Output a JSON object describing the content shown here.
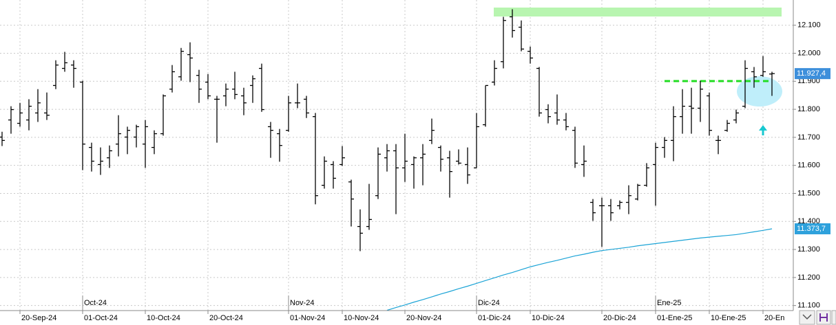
{
  "chart_data": {
    "type": "ohlc",
    "color": "#000000",
    "categories": [
      null,
      null,
      "20-Sep-24",
      null,
      null,
      null,
      null,
      null,
      null,
      "01-Oct-24",
      null,
      null,
      null,
      null,
      null,
      null,
      "10-Oct-24",
      null,
      null,
      null,
      null,
      null,
      null,
      "20-Oct-24",
      null,
      null,
      null,
      null,
      null,
      null,
      null,
      null,
      "01-Nov-24",
      null,
      null,
      null,
      null,
      null,
      "10-Nov-24",
      null,
      null,
      null,
      null,
      null,
      null,
      "20-Nov-24",
      null,
      null,
      null,
      null,
      null,
      null,
      null,
      "01-Dic-24",
      null,
      null,
      null,
      null,
      null,
      "10-Dic-24",
      null,
      null,
      null,
      null,
      null,
      null,
      null,
      "20-Dic-24",
      null,
      null,
      null,
      null,
      null,
      "01-Ene-25",
      null,
      null,
      null,
      null,
      null,
      "10-Ene-25",
      null,
      null,
      null,
      null,
      null,
      "20-En",
      null
    ],
    "months": [
      null,
      null,
      null,
      null,
      null,
      null,
      null,
      null,
      null,
      "Oct-24",
      null,
      null,
      null,
      null,
      null,
      null,
      null,
      null,
      null,
      null,
      null,
      null,
      null,
      null,
      null,
      null,
      null,
      null,
      null,
      null,
      null,
      null,
      "Nov-24",
      null,
      null,
      null,
      null,
      null,
      null,
      null,
      null,
      null,
      null,
      null,
      null,
      null,
      null,
      null,
      null,
      null,
      null,
      null,
      null,
      "Dic-24",
      null,
      null,
      null,
      null,
      null,
      null,
      null,
      null,
      null,
      null,
      null,
      null,
      null,
      null,
      null,
      null,
      null,
      null,
      null,
      "Ene-25",
      null,
      null,
      null,
      null,
      null,
      null,
      null,
      null,
      null,
      null,
      null,
      null,
      null
    ],
    "open": [
      11701,
      11762,
      11750,
      11762,
      11787,
      11787,
      11885,
      11946,
      11958,
      11897,
      11664,
      11603,
      11627,
      11676,
      11701,
      11701,
      11676,
      11664,
      11713,
      11872,
      11916,
      11995,
      11921,
      11897,
      11836,
      11848,
      11872,
      11848,
      11885,
      11946,
      11738,
      11713,
      11725,
      11823,
      11836,
      11774,
      11529,
      11603,
      11603,
      11541,
      11382,
      11382,
      11492,
      11627,
      11652,
      11591,
      11603,
      11627,
      11689,
      11664,
      11627,
      11615,
      11603,
      11591,
      11745,
      11897,
      11970,
      12130,
      12093,
      12007,
      11946,
      11799,
      11787,
      11762,
      11725,
      11603,
      11468,
      11456,
      11456,
      11456,
      11468,
      11480,
      11529,
      11603,
      11664,
      11689,
      11774,
      11811,
      11804,
      11848,
      11689,
      11725,
      11762,
      11811,
      11934,
      11921,
      11926
    ],
    "high": [
      11720,
      11811,
      11823,
      11836,
      11872,
      11860,
      11975,
      12005,
      11975,
      11902,
      11681,
      11664,
      11671,
      11779,
      11738,
      11745,
      11762,
      11725,
      11853,
      11958,
      12019,
      12039,
      11941,
      11926,
      11848,
      11892,
      11934,
      11877,
      11921,
      11963,
      11755,
      11730,
      11848,
      11892,
      11848,
      11787,
      11632,
      11615,
      11669,
      11549,
      11443,
      11534,
      11664,
      11676,
      11676,
      11713,
      11632,
      11676,
      11767,
      11671,
      11652,
      11657,
      11664,
      11787,
      11885,
      11975,
      12130,
      12157,
      12117,
      12024,
      11951,
      11818,
      11853,
      11787,
      11738,
      11671,
      11480,
      11485,
      11480,
      11475,
      11529,
      11534,
      11608,
      11681,
      11701,
      11811,
      11872,
      11877,
      11902,
      11860,
      11706,
      11762,
      11799,
      11975,
      11951,
      11990,
      11934
    ],
    "low": [
      11669,
      11713,
      11738,
      11725,
      11755,
      11762,
      11872,
      11934,
      11877,
      11583,
      11578,
      11566,
      11591,
      11632,
      11640,
      11664,
      11591,
      11640,
      11706,
      11860,
      11902,
      11897,
      11823,
      11836,
      11681,
      11811,
      11836,
      11779,
      11823,
      11791,
      11627,
      11613,
      11720,
      11804,
      11769,
      11461,
      11517,
      11517,
      11598,
      11382,
      11294,
      11370,
      11480,
      11578,
      11426,
      11541,
      11517,
      11529,
      11676,
      11578,
      11485,
      11603,
      11534,
      11591,
      11738,
      11885,
      11946,
      12056,
      12007,
      11963,
      11774,
      11750,
      11745,
      11725,
      11591,
      11559,
      11402,
      11309,
      11402,
      11443,
      11426,
      11475,
      11524,
      11456,
      11627,
      11615,
      11713,
      11713,
      11755,
      11706,
      11640,
      11720,
      11750,
      11804,
      11877,
      11916,
      11848
    ],
    "close": [
      11689,
      11799,
      11787,
      11811,
      11823,
      11779,
      11958,
      11966,
      11946,
      11676,
      11615,
      11615,
      11652,
      11713,
      11725,
      11738,
      11738,
      11713,
      11848,
      11934,
      12007,
      11983,
      11872,
      11848,
      11836,
      11872,
      11853,
      11823,
      11909,
      11799,
      11725,
      11671,
      11823,
      11823,
      11787,
      11492,
      11615,
      11554,
      11627,
      11480,
      11358,
      11407,
      11640,
      11652,
      11591,
      11615,
      11627,
      11640,
      11725,
      11622,
      11578,
      11608,
      11566,
      11738,
      11885,
      11946,
      12117,
      12081,
      12015,
      11983,
      11787,
      11774,
      11762,
      11738,
      11608,
      11615,
      11431,
      11456,
      11431,
      11468,
      11492,
      11529,
      11591,
      11664,
      11689,
      11774,
      11811,
      11804,
      11872,
      11725,
      11689,
      11750,
      11787,
      11946,
      11916,
      11934,
      11927.4
    ],
    "moving_average": {
      "color": "#1aa3d6",
      "values": [
        null,
        null,
        null,
        null,
        null,
        null,
        null,
        null,
        null,
        null,
        null,
        null,
        null,
        null,
        null,
        null,
        null,
        null,
        null,
        null,
        null,
        null,
        null,
        null,
        null,
        null,
        null,
        null,
        null,
        null,
        null,
        null,
        null,
        null,
        null,
        null,
        null,
        null,
        null,
        null,
        null,
        null,
        null,
        11083,
        11093,
        11102,
        11112,
        11121,
        11131,
        11141,
        11150,
        11160,
        11169,
        11179,
        11189,
        11199,
        11209,
        11218,
        11228,
        11238,
        11246,
        11254,
        11261,
        11269,
        11277,
        11283,
        11290,
        11296,
        11300,
        11304,
        11308,
        11313,
        11317,
        11321,
        11325,
        11329,
        11333,
        11337,
        11341,
        11344,
        11347,
        11350,
        11353,
        11358,
        11363,
        11368,
        11373.7
      ]
    },
    "price_labels": [
      {
        "value": 11927.4,
        "label": "11.927,4",
        "color": "#3d8fdb"
      },
      {
        "value": 11373.7,
        "label": "11.373,7",
        "color": "#2ea1dc"
      }
    ],
    "ylim": [
      11082,
      12190
    ],
    "yticks": [
      {
        "value": 11100,
        "label": "11.100"
      },
      {
        "value": 11200,
        "label": "11.200"
      },
      {
        "value": 11300,
        "label": "11.300"
      },
      {
        "value": 11400,
        "label": "11.400"
      },
      {
        "value": 11500,
        "label": "11.500"
      },
      {
        "value": 11600,
        "label": "11.600"
      },
      {
        "value": 11700,
        "label": "11.700"
      },
      {
        "value": 11800,
        "label": "11.800"
      },
      {
        "value": 11900,
        "label": "11.900"
      },
      {
        "value": 12000,
        "label": "12.000"
      },
      {
        "value": 12100,
        "label": "12.100"
      }
    ],
    "grid": true
  }
}
